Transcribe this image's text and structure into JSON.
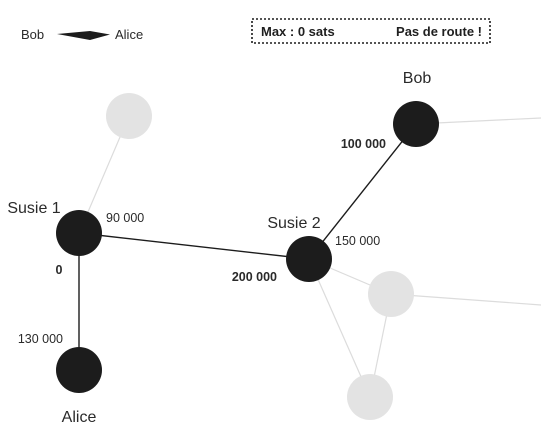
{
  "legend": {
    "from": "Bob",
    "to": "Alice"
  },
  "status": {
    "max": "Max : 0 sats",
    "message": "Pas de route !"
  },
  "colors": {
    "active_node": "#1c1c1c",
    "inactive_node": "#e3e3e3",
    "active_edge": "#1c1c1c",
    "inactive_edge": "#dcdcdc"
  },
  "nodes": {
    "susie1": "Susie 1",
    "susie2": "Susie 2",
    "bob": "Bob",
    "alice": "Alice"
  },
  "edge_labels": {
    "s1_s2_near_s1": "90 000",
    "s1_s2_near_s2": "200 000",
    "s1_alice_near_s1": "0",
    "s1_alice_near_alice": "130 000",
    "s2_bob_near_bob": "100 000",
    "s2_bob_near_s2": "150 000"
  }
}
